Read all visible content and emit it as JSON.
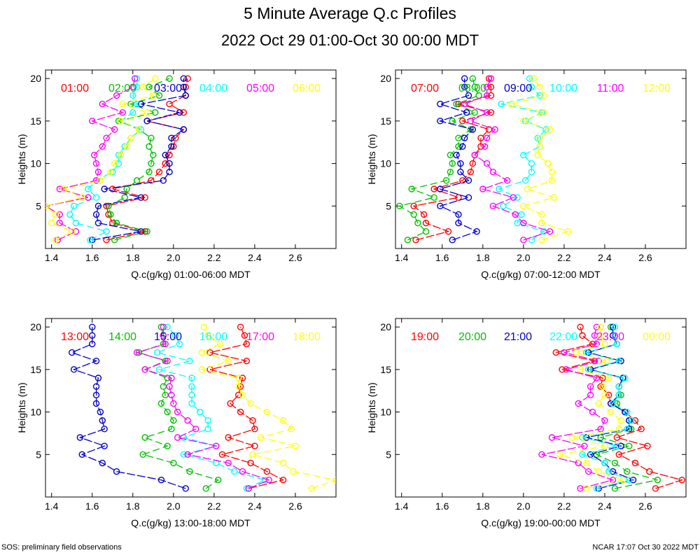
{
  "title": "5 Minute Average Q.c Profiles",
  "subtitle": "2022 Oct 29 01:00-Oct 30 00:00 MDT",
  "footer_left": "SOS: preliminary field observations",
  "footer_right": "NCAR 17:07 Oct 30 2022 MDT",
  "colors": [
    "#ff0000",
    "#00c000",
    "#0000c8",
    "#00ffff",
    "#ff00ff",
    "#ffff00"
  ],
  "chart_data": [
    {
      "type": "line",
      "xlabel": "Q.c(g/kg) 01:00-06:00 MDT",
      "ylabel": "Heights (m)",
      "xlim": [
        1.37,
        2.8
      ],
      "ylim": [
        0,
        21
      ],
      "xticks": [
        1.4,
        1.6,
        1.8,
        2.0,
        2.2,
        2.4,
        2.6
      ],
      "yticks": [
        5,
        10,
        15,
        20
      ],
      "heights": [
        1,
        2,
        3,
        4,
        5,
        6,
        7,
        8,
        9,
        10,
        11,
        12,
        13,
        14,
        15,
        16,
        17,
        18,
        19,
        20
      ],
      "series": [
        {
          "name": "01:00",
          "color": "#ff0000",
          "values": [
            1.67,
            1.86,
            1.7,
            1.68,
            1.67,
            1.86,
            1.7,
            1.89,
            1.93,
            1.96,
            1.98,
            2.0,
            2.01,
            2.05,
            1.87,
            2.05,
            1.98,
            2.06,
            2.06,
            2.07
          ]
        },
        {
          "name": "02:00",
          "color": "#00c000",
          "values": [
            1.71,
            1.87,
            1.72,
            1.69,
            1.68,
            1.76,
            1.77,
            1.82,
            1.88,
            1.89,
            1.9,
            1.88,
            1.89,
            1.83,
            1.73,
            1.91,
            1.79,
            1.93,
            1.88,
            1.98
          ]
        },
        {
          "name": "03:00",
          "color": "#0000c8",
          "values": [
            1.6,
            1.84,
            1.63,
            1.62,
            1.63,
            1.84,
            1.66,
            1.95,
            1.98,
            1.98,
            1.96,
            1.99,
            1.99,
            2.05,
            1.87,
            2.03,
            1.84,
            2.06,
            2.05,
            2.05
          ]
        },
        {
          "name": "04:00",
          "color": "#00ffff",
          "values": [
            1.59,
            1.67,
            1.52,
            1.49,
            1.51,
            1.62,
            1.58,
            1.62,
            1.7,
            1.73,
            1.73,
            1.76,
            1.79,
            1.84,
            1.74,
            1.8,
            1.82,
            1.8,
            1.82,
            1.82
          ]
        },
        {
          "name": "05:00",
          "color": "#ff00ff",
          "values": [
            1.43,
            1.52,
            1.44,
            1.44,
            1.37,
            1.58,
            1.44,
            1.62,
            1.63,
            1.62,
            1.61,
            1.65,
            1.67,
            1.71,
            1.6,
            1.75,
            1.65,
            1.72,
            1.8,
            1.81
          ]
        },
        {
          "name": "06:00",
          "color": "#ffff00",
          "values": [
            1.42,
            1.5,
            1.4,
            1.42,
            1.37,
            1.55,
            1.46,
            1.64,
            1.69,
            1.71,
            1.74,
            1.77,
            1.79,
            1.83,
            1.74,
            1.87,
            1.75,
            1.9,
            1.85,
            1.91
          ]
        }
      ]
    },
    {
      "type": "line",
      "xlabel": "Q.c(g/kg) 07:00-12:00 MDT",
      "ylabel": "Heights (m)",
      "xlim": [
        1.37,
        2.8
      ],
      "ylim": [
        0,
        21
      ],
      "xticks": [
        1.4,
        1.6,
        1.8,
        2.0,
        2.2,
        2.4,
        2.6
      ],
      "yticks": [
        5,
        10,
        15,
        20
      ],
      "heights": [
        1,
        2,
        3,
        4,
        5,
        6,
        7,
        8,
        9,
        10,
        11,
        12,
        13,
        14,
        15,
        16,
        17,
        18,
        19,
        20
      ],
      "series": [
        {
          "name": "07:00",
          "color": "#ff0000",
          "values": [
            1.47,
            1.63,
            1.52,
            1.51,
            1.46,
            1.68,
            1.56,
            1.7,
            1.74,
            1.75,
            1.76,
            1.79,
            1.79,
            1.83,
            1.7,
            1.84,
            1.68,
            1.84,
            1.84,
            1.83
          ]
        },
        {
          "name": "08:00",
          "color": "#00c000",
          "values": [
            1.43,
            1.52,
            1.48,
            1.46,
            1.39,
            1.56,
            1.45,
            1.62,
            1.64,
            1.65,
            1.64,
            1.68,
            1.68,
            1.74,
            1.65,
            1.76,
            1.67,
            1.78,
            1.76,
            1.75
          ]
        },
        {
          "name": "09:00",
          "color": "#0000c8",
          "values": [
            1.65,
            1.77,
            1.68,
            1.68,
            1.59,
            1.73,
            1.59,
            1.73,
            1.69,
            1.69,
            1.67,
            1.7,
            1.71,
            1.75,
            1.59,
            1.72,
            1.59,
            1.73,
            1.71,
            1.71
          ]
        },
        {
          "name": "10:00",
          "color": "#00ffff",
          "values": [
            2.04,
            2.1,
            1.97,
            1.99,
            1.9,
            1.97,
            1.88,
            2.01,
            2.04,
            2.04,
            2.0,
            2.08,
            2.07,
            2.11,
            2.01,
            2.09,
            1.89,
            2.08,
            2.04,
            2.03
          ]
        },
        {
          "name": "11:00",
          "color": "#ff00ff",
          "values": [
            2.0,
            2.13,
            2.0,
            1.96,
            1.85,
            1.95,
            1.8,
            1.92,
            1.85,
            1.82,
            1.76,
            1.81,
            1.82,
            1.86,
            1.74,
            1.82,
            1.71,
            1.82,
            1.82,
            1.84
          ]
        },
        {
          "name": "12:00",
          "color": "#ffff00",
          "values": [
            2.09,
            2.22,
            2.09,
            2.09,
            2.0,
            2.15,
            2.02,
            2.14,
            2.14,
            2.12,
            2.07,
            2.08,
            2.08,
            2.13,
            2.0,
            2.1,
            1.94,
            2.1,
            2.08,
            2.05
          ]
        }
      ]
    },
    {
      "type": "line",
      "xlabel": "Q.c(g/kg) 13:00-18:00 MDT",
      "ylabel": "Heights (m)",
      "xlim": [
        1.37,
        2.8
      ],
      "ylim": [
        0,
        21
      ],
      "xticks": [
        1.4,
        1.6,
        1.8,
        2.0,
        2.2,
        2.4,
        2.6
      ],
      "yticks": [
        5,
        10,
        15,
        20
      ],
      "heights": [
        1,
        2,
        3,
        4,
        5,
        6,
        7,
        8,
        9,
        10,
        11,
        12,
        13,
        14,
        15,
        16,
        17,
        18,
        19,
        20
      ],
      "series": [
        {
          "name": "13:00",
          "color": "#ff0000",
          "values": [
            2.37,
            2.54,
            2.46,
            2.38,
            2.24,
            2.4,
            2.27,
            2.4,
            2.39,
            2.33,
            2.28,
            2.32,
            2.33,
            2.34,
            2.18,
            2.36,
            2.18,
            2.36,
            2.35,
            2.33
          ]
        },
        {
          "name": "14:00",
          "color": "#00c000",
          "values": [
            2.16,
            2.22,
            2.08,
            2.0,
            1.85,
            1.97,
            1.86,
            1.99,
            2.0,
            1.97,
            1.94,
            1.96,
            1.95,
            1.97,
            1.86,
            1.96,
            1.83,
            1.95,
            1.95,
            1.94
          ]
        },
        {
          "name": "15:00",
          "color": "#0000c8",
          "values": [
            2.06,
            1.94,
            1.72,
            1.65,
            1.55,
            1.66,
            1.54,
            1.66,
            1.65,
            1.64,
            1.62,
            1.62,
            1.62,
            1.63,
            1.51,
            1.62,
            1.5,
            1.6,
            1.6,
            1.6
          ]
        },
        {
          "name": "16:00",
          "color": "#00ffff",
          "values": [
            2.36,
            2.45,
            2.3,
            2.21,
            2.05,
            2.21,
            2.05,
            2.17,
            2.17,
            2.13,
            2.09,
            2.09,
            2.09,
            2.09,
            1.93,
            2.08,
            1.92,
            2.03,
            2.01,
            1.97
          ]
        },
        {
          "name": "17:00",
          "color": "#ff00ff",
          "values": [
            2.37,
            2.47,
            2.34,
            2.27,
            2.07,
            2.21,
            2.02,
            2.11,
            2.07,
            2.02,
            2.0,
            1.99,
            1.98,
            1.99,
            1.86,
            1.97,
            1.82,
            1.96,
            1.95,
            1.95
          ]
        },
        {
          "name": "18:00",
          "color": "#ffff00",
          "values": [
            2.68,
            2.8,
            2.59,
            2.54,
            2.39,
            2.6,
            2.43,
            2.58,
            2.54,
            2.46,
            2.38,
            2.34,
            2.32,
            2.32,
            2.14,
            2.27,
            2.14,
            2.23,
            2.17,
            2.15
          ]
        }
      ]
    },
    {
      "type": "line",
      "xlabel": "Q.c(g/kg) 19:00-00:00 MDT",
      "ylabel": "Heights (m)",
      "xlim": [
        1.37,
        2.8
      ],
      "ylim": [
        0,
        21
      ],
      "xticks": [
        1.4,
        1.6,
        1.8,
        2.0,
        2.2,
        2.4,
        2.6
      ],
      "yticks": [
        5,
        10,
        15,
        20
      ],
      "heights": [
        1,
        2,
        3,
        4,
        5,
        6,
        7,
        8,
        9,
        10,
        11,
        12,
        13,
        14,
        15,
        16,
        17,
        18,
        19,
        20
      ],
      "series": [
        {
          "name": "19:00",
          "color": "#ff0000",
          "values": [
            2.65,
            2.78,
            2.62,
            2.55,
            2.47,
            2.61,
            2.46,
            2.58,
            2.55,
            2.5,
            2.43,
            2.42,
            2.38,
            2.39,
            2.19,
            2.35,
            2.16,
            2.34,
            2.29,
            2.28
          ]
        },
        {
          "name": "20:00",
          "color": "#00c000",
          "values": [
            2.45,
            2.66,
            2.51,
            2.45,
            2.36,
            2.52,
            2.38,
            2.53,
            2.52,
            2.5,
            2.46,
            2.48,
            2.47,
            2.49,
            2.32,
            2.47,
            2.31,
            2.46,
            2.44,
            2.43
          ]
        },
        {
          "name": "21:00",
          "color": "#0000c8",
          "values": [
            2.37,
            2.54,
            2.44,
            2.4,
            2.33,
            2.48,
            2.31,
            2.52,
            2.52,
            2.5,
            2.43,
            2.47,
            2.47,
            2.49,
            2.33,
            2.48,
            2.32,
            2.46,
            2.44,
            2.44
          ]
        },
        {
          "name": "22:00",
          "color": "#00ffff",
          "values": [
            2.36,
            2.52,
            2.42,
            2.4,
            2.29,
            2.46,
            2.29,
            2.51,
            2.53,
            2.51,
            2.44,
            2.47,
            2.47,
            2.5,
            2.32,
            2.47,
            2.31,
            2.46,
            2.45,
            2.45
          ]
        },
        {
          "name": "23:00",
          "color": "#ff00ff",
          "values": [
            2.28,
            2.44,
            2.32,
            2.27,
            2.09,
            2.3,
            2.14,
            2.38,
            2.4,
            2.34,
            2.27,
            2.33,
            2.33,
            2.36,
            2.21,
            2.37,
            2.2,
            2.36,
            2.35,
            2.36
          ]
        },
        {
          "name": "00:00",
          "color": "#ffff00",
          "values": [
            2.31,
            2.49,
            2.37,
            2.31,
            2.18,
            2.4,
            2.24,
            2.47,
            2.48,
            2.43,
            2.37,
            2.4,
            2.39,
            2.42,
            2.28,
            2.41,
            2.26,
            2.4,
            2.38,
            2.38
          ]
        }
      ]
    }
  ]
}
